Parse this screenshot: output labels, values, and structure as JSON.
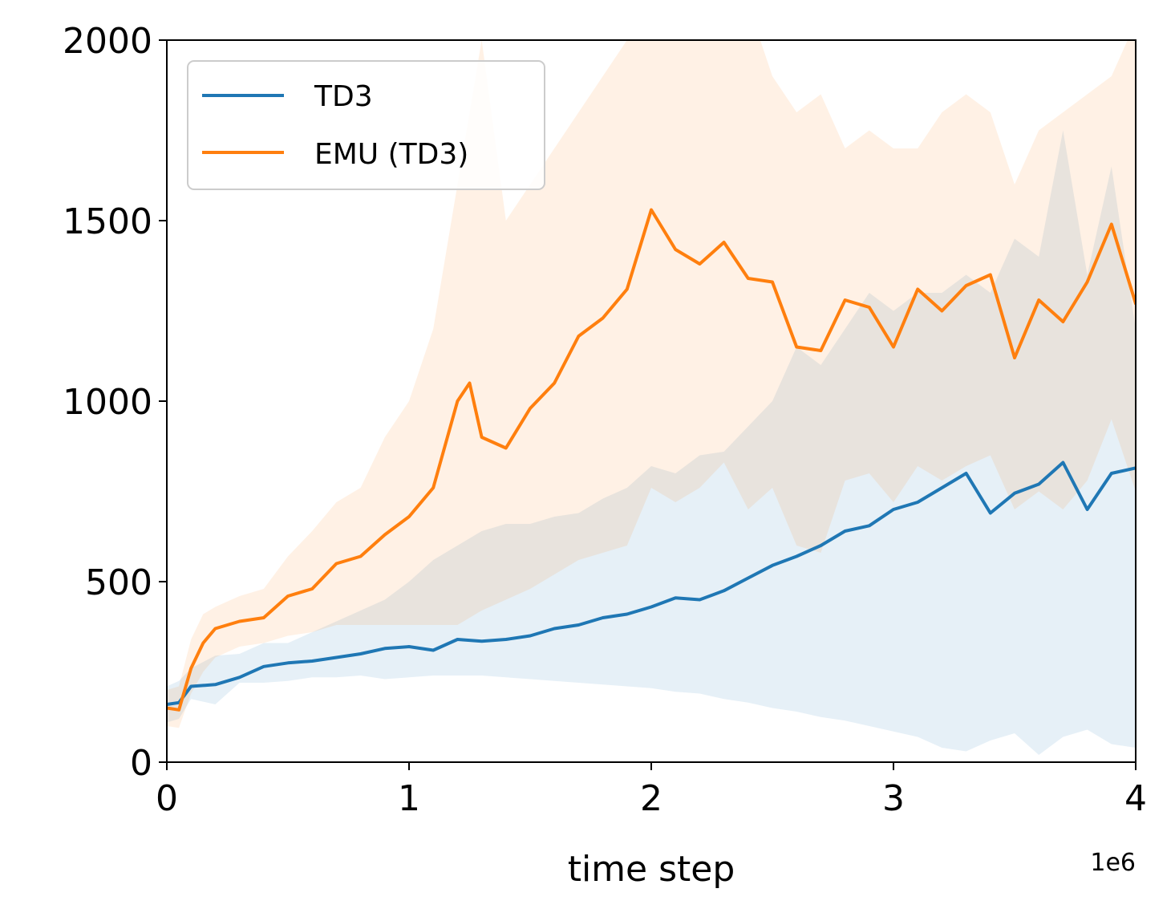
{
  "chart_data": {
    "type": "line",
    "title": "",
    "xlabel": "time step",
    "ylabel": "",
    "x_offset_label": "1e6",
    "xlim": [
      0,
      4
    ],
    "ylim": [
      0,
      2000
    ],
    "xticks": [
      0,
      1,
      2,
      3,
      4
    ],
    "yticks": [
      0,
      500,
      1000,
      1500,
      2000
    ],
    "grid": false,
    "legend_position": "top-left",
    "colors": {
      "td3": "#1f77b4",
      "emu": "#ff7f0e"
    },
    "series": [
      {
        "name": "TD3",
        "color": "#1f77b4",
        "x": [
          0,
          0.05,
          0.1,
          0.2,
          0.3,
          0.4,
          0.5,
          0.6,
          0.7,
          0.8,
          0.9,
          1.0,
          1.1,
          1.2,
          1.3,
          1.4,
          1.5,
          1.6,
          1.7,
          1.8,
          1.9,
          2.0,
          2.1,
          2.2,
          2.3,
          2.4,
          2.5,
          2.6,
          2.7,
          2.8,
          2.9,
          3.0,
          3.1,
          3.2,
          3.3,
          3.4,
          3.5,
          3.6,
          3.7,
          3.8,
          3.9,
          4.0
        ],
        "values": [
          160,
          165,
          210,
          215,
          235,
          265,
          275,
          280,
          290,
          300,
          315,
          320,
          310,
          340,
          335,
          340,
          350,
          370,
          380,
          400,
          410,
          430,
          455,
          450,
          475,
          510,
          545,
          570,
          600,
          640,
          655,
          700,
          720,
          760,
          800,
          690,
          745,
          770,
          830,
          700,
          800,
          815
        ],
        "band_upper": [
          210,
          225,
          260,
          295,
          300,
          330,
          330,
          360,
          390,
          420,
          450,
          500,
          560,
          600,
          640,
          660,
          660,
          680,
          690,
          730,
          760,
          820,
          800,
          850,
          860,
          930,
          1000,
          1150,
          1100,
          1200,
          1300,
          1250,
          1300,
          1300,
          1350,
          1300,
          1450,
          1400,
          1750,
          1350,
          1650,
          1200
        ],
        "band_lower": [
          110,
          120,
          175,
          160,
          220,
          220,
          225,
          235,
          235,
          240,
          230,
          235,
          240,
          240,
          240,
          235,
          230,
          225,
          220,
          215,
          210,
          205,
          195,
          190,
          175,
          165,
          150,
          140,
          125,
          115,
          100,
          85,
          70,
          40,
          30,
          60,
          80,
          20,
          70,
          90,
          50,
          40
        ]
      },
      {
        "name": "EMU (TD3)",
        "color": "#ff7f0e",
        "x": [
          0,
          0.05,
          0.1,
          0.15,
          0.2,
          0.3,
          0.4,
          0.5,
          0.6,
          0.7,
          0.8,
          0.9,
          1.0,
          1.1,
          1.2,
          1.25,
          1.3,
          1.4,
          1.5,
          1.6,
          1.7,
          1.8,
          1.9,
          2.0,
          2.1,
          2.2,
          2.3,
          2.4,
          2.5,
          2.6,
          2.7,
          2.8,
          2.9,
          3.0,
          3.1,
          3.2,
          3.3,
          3.4,
          3.5,
          3.6,
          3.7,
          3.8,
          3.9,
          4.0
        ],
        "values": [
          150,
          145,
          260,
          330,
          370,
          390,
          400,
          460,
          480,
          550,
          570,
          630,
          680,
          760,
          1000,
          1050,
          900,
          870,
          980,
          1050,
          1180,
          1230,
          1310,
          1530,
          1420,
          1380,
          1440,
          1340,
          1330,
          1150,
          1140,
          1280,
          1260,
          1150,
          1310,
          1250,
          1320,
          1350,
          1120,
          1280,
          1220,
          1330,
          1490,
          1270
        ],
        "band_upper": [
          200,
          210,
          340,
          410,
          430,
          460,
          480,
          570,
          640,
          720,
          760,
          900,
          1000,
          1200,
          1600,
          1800,
          2000,
          1500,
          1600,
          1700,
          1800,
          1900,
          2000,
          2100,
          2100,
          2050,
          2000,
          2100,
          1900,
          1800,
          1850,
          1700,
          1750,
          1700,
          1700,
          1800,
          1850,
          1800,
          1600,
          1750,
          1800,
          1850,
          1900,
          2050
        ],
        "band_lower": [
          100,
          95,
          190,
          250,
          290,
          320,
          330,
          350,
          360,
          380,
          380,
          380,
          380,
          380,
          380,
          400,
          420,
          450,
          480,
          520,
          560,
          580,
          600,
          760,
          720,
          760,
          830,
          700,
          760,
          600,
          580,
          780,
          800,
          720,
          820,
          780,
          820,
          850,
          700,
          750,
          700,
          780,
          950,
          750
        ]
      }
    ]
  }
}
